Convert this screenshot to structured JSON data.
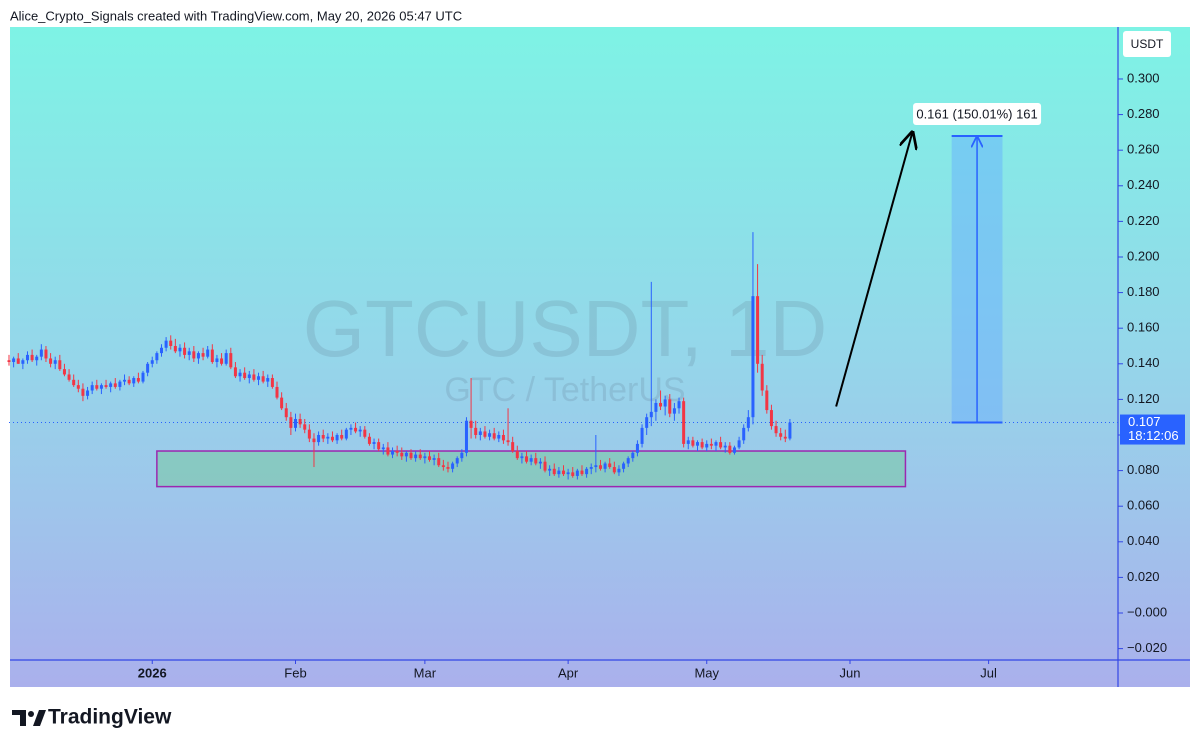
{
  "chart_data": {
    "type": "candlestick",
    "source": "Alice_Crypto_Signals created with TradingView.com, May 20, 2026 05:47 UTC",
    "title": "GTCUSDT, 1D",
    "subtitle": "GTC / TetherUS",
    "currency": "USDT",
    "brand": "TradingView",
    "up_color": "#2962ff",
    "down_color": "#f23645",
    "xlim": [
      0,
      240
    ],
    "ylim": [
      -0.0264,
      0.3292
    ],
    "xticks": [
      {
        "value": 31,
        "label": "2026"
      },
      {
        "value": 62,
        "label": "Feb"
      },
      {
        "value": 90,
        "label": "Mar"
      },
      {
        "value": 121,
        "label": "Apr"
      },
      {
        "value": 151,
        "label": "May"
      },
      {
        "value": 182,
        "label": "Jun"
      },
      {
        "value": 212,
        "label": "Jul"
      }
    ],
    "yticks": [
      {
        "value": -0.02,
        "label": "−0.020"
      },
      {
        "value": 0,
        "label": "−0.000"
      },
      {
        "value": 0.02,
        "label": "0.020"
      },
      {
        "value": 0.04,
        "label": "0.040"
      },
      {
        "value": 0.06,
        "label": "0.060"
      },
      {
        "value": 0.08,
        "label": "0.080"
      },
      {
        "value": 0.1,
        "label": "0.100"
      },
      {
        "value": 0.12,
        "label": "0.120"
      },
      {
        "value": 0.14,
        "label": "0.140"
      },
      {
        "value": 0.16,
        "label": "0.160"
      },
      {
        "value": 0.18,
        "label": "0.180"
      },
      {
        "value": 0.2,
        "label": "0.200"
      },
      {
        "value": 0.22,
        "label": "0.220"
      },
      {
        "value": 0.24,
        "label": "0.240"
      },
      {
        "value": 0.26,
        "label": "0.260"
      },
      {
        "value": 0.28,
        "label": "0.280"
      },
      {
        "value": 0.3,
        "label": "0.300"
      }
    ],
    "last_price": 0.107,
    "countdown": "18:12:06",
    "zone": {
      "x": [
        32,
        194
      ],
      "y": [
        0.071,
        0.091
      ]
    },
    "arrow": {
      "x": [
        179,
        195.5
      ],
      "y": [
        0.116,
        0.27
      ]
    },
    "measure": {
      "x": [
        204,
        215
      ],
      "y": [
        0.107,
        0.268
      ],
      "label": "0.161 (150.01%) 161"
    },
    "ohlc": [
      [
        0.142,
        0.145,
        0.139,
        0.141
      ],
      [
        0.141,
        0.144,
        0.138,
        0.143
      ],
      [
        0.143,
        0.146,
        0.14,
        0.14
      ],
      [
        0.14,
        0.143,
        0.137,
        0.142
      ],
      [
        0.142,
        0.147,
        0.14,
        0.145
      ],
      [
        0.145,
        0.148,
        0.141,
        0.142
      ],
      [
        0.142,
        0.145,
        0.139,
        0.144
      ],
      [
        0.144,
        0.151,
        0.142,
        0.148
      ],
      [
        0.148,
        0.15,
        0.141,
        0.143
      ],
      [
        0.143,
        0.146,
        0.138,
        0.14
      ],
      [
        0.14,
        0.144,
        0.137,
        0.142
      ],
      [
        0.142,
        0.145,
        0.136,
        0.137
      ],
      [
        0.137,
        0.14,
        0.133,
        0.134
      ],
      [
        0.134,
        0.137,
        0.13,
        0.131
      ],
      [
        0.131,
        0.134,
        0.127,
        0.128
      ],
      [
        0.128,
        0.131,
        0.124,
        0.126
      ],
      [
        0.126,
        0.129,
        0.119,
        0.122
      ],
      [
        0.122,
        0.127,
        0.12,
        0.125
      ],
      [
        0.125,
        0.13,
        0.123,
        0.128
      ],
      [
        0.128,
        0.131,
        0.125,
        0.126
      ],
      [
        0.126,
        0.129,
        0.123,
        0.128
      ],
      [
        0.128,
        0.131,
        0.126,
        0.127
      ],
      [
        0.127,
        0.13,
        0.124,
        0.129
      ],
      [
        0.129,
        0.132,
        0.126,
        0.127
      ],
      [
        0.127,
        0.131,
        0.125,
        0.13
      ],
      [
        0.13,
        0.134,
        0.128,
        0.131
      ],
      [
        0.131,
        0.133,
        0.128,
        0.129
      ],
      [
        0.129,
        0.133,
        0.127,
        0.132
      ],
      [
        0.132,
        0.135,
        0.129,
        0.13
      ],
      [
        0.13,
        0.136,
        0.129,
        0.135
      ],
      [
        0.135,
        0.141,
        0.133,
        0.14
      ],
      [
        0.14,
        0.144,
        0.138,
        0.142
      ],
      [
        0.142,
        0.147,
        0.14,
        0.146
      ],
      [
        0.146,
        0.151,
        0.144,
        0.149
      ],
      [
        0.149,
        0.155,
        0.147,
        0.153
      ],
      [
        0.153,
        0.156,
        0.148,
        0.15
      ],
      [
        0.15,
        0.154,
        0.146,
        0.147
      ],
      [
        0.147,
        0.151,
        0.144,
        0.149
      ],
      [
        0.149,
        0.152,
        0.143,
        0.145
      ],
      [
        0.145,
        0.149,
        0.142,
        0.147
      ],
      [
        0.147,
        0.15,
        0.141,
        0.143
      ],
      [
        0.143,
        0.147,
        0.14,
        0.146
      ],
      [
        0.146,
        0.149,
        0.142,
        0.144
      ],
      [
        0.144,
        0.15,
        0.143,
        0.148
      ],
      [
        0.148,
        0.151,
        0.14,
        0.141
      ],
      [
        0.141,
        0.145,
        0.138,
        0.143
      ],
      [
        0.143,
        0.146,
        0.139,
        0.14
      ],
      [
        0.14,
        0.148,
        0.139,
        0.146
      ],
      [
        0.146,
        0.149,
        0.137,
        0.138
      ],
      [
        0.138,
        0.141,
        0.132,
        0.133
      ],
      [
        0.133,
        0.137,
        0.13,
        0.135
      ],
      [
        0.135,
        0.138,
        0.131,
        0.132
      ],
      [
        0.132,
        0.136,
        0.129,
        0.134
      ],
      [
        0.134,
        0.137,
        0.13,
        0.131
      ],
      [
        0.131,
        0.135,
        0.128,
        0.133
      ],
      [
        0.133,
        0.136,
        0.129,
        0.13
      ],
      [
        0.13,
        0.134,
        0.127,
        0.132
      ],
      [
        0.132,
        0.134,
        0.126,
        0.127
      ],
      [
        0.127,
        0.13,
        0.12,
        0.121
      ],
      [
        0.121,
        0.124,
        0.114,
        0.115
      ],
      [
        0.115,
        0.118,
        0.108,
        0.11
      ],
      [
        0.11,
        0.113,
        0.1,
        0.104
      ],
      [
        0.104,
        0.112,
        0.102,
        0.109
      ],
      [
        0.109,
        0.112,
        0.104,
        0.106
      ],
      [
        0.106,
        0.109,
        0.101,
        0.103
      ],
      [
        0.103,
        0.106,
        0.096,
        0.098
      ],
      [
        0.098,
        0.101,
        0.082,
        0.096
      ],
      [
        0.096,
        0.102,
        0.094,
        0.1
      ],
      [
        0.1,
        0.103,
        0.096,
        0.098
      ],
      [
        0.098,
        0.101,
        0.095,
        0.099
      ],
      [
        0.099,
        0.102,
        0.096,
        0.097
      ],
      [
        0.097,
        0.101,
        0.095,
        0.1
      ],
      [
        0.1,
        0.103,
        0.097,
        0.098
      ],
      [
        0.098,
        0.104,
        0.097,
        0.103
      ],
      [
        0.103,
        0.106,
        0.1,
        0.104
      ],
      [
        0.104,
        0.107,
        0.101,
        0.102
      ],
      [
        0.102,
        0.105,
        0.099,
        0.103
      ],
      [
        0.103,
        0.105,
        0.098,
        0.099
      ],
      [
        0.099,
        0.101,
        0.094,
        0.095
      ],
      [
        0.095,
        0.098,
        0.092,
        0.096
      ],
      [
        0.096,
        0.098,
        0.091,
        0.092
      ],
      [
        0.092,
        0.095,
        0.089,
        0.093
      ],
      [
        0.093,
        0.096,
        0.088,
        0.089
      ],
      [
        0.089,
        0.093,
        0.087,
        0.091
      ],
      [
        0.091,
        0.094,
        0.088,
        0.09
      ],
      [
        0.09,
        0.093,
        0.086,
        0.088
      ],
      [
        0.088,
        0.091,
        0.085,
        0.09
      ],
      [
        0.09,
        0.092,
        0.086,
        0.087
      ],
      [
        0.087,
        0.091,
        0.085,
        0.089
      ],
      [
        0.089,
        0.092,
        0.086,
        0.087
      ],
      [
        0.087,
        0.09,
        0.084,
        0.088
      ],
      [
        0.088,
        0.091,
        0.085,
        0.086
      ],
      [
        0.086,
        0.089,
        0.083,
        0.087
      ],
      [
        0.087,
        0.09,
        0.082,
        0.083
      ],
      [
        0.083,
        0.086,
        0.08,
        0.082
      ],
      [
        0.082,
        0.085,
        0.079,
        0.081
      ],
      [
        0.081,
        0.085,
        0.079,
        0.084
      ],
      [
        0.084,
        0.088,
        0.082,
        0.087
      ],
      [
        0.087,
        0.092,
        0.085,
        0.09
      ],
      [
        0.09,
        0.11,
        0.088,
        0.108
      ],
      [
        0.108,
        0.132,
        0.098,
        0.104
      ],
      [
        0.104,
        0.108,
        0.098,
        0.1
      ],
      [
        0.1,
        0.104,
        0.097,
        0.102
      ],
      [
        0.102,
        0.105,
        0.098,
        0.099
      ],
      [
        0.099,
        0.103,
        0.097,
        0.101
      ],
      [
        0.101,
        0.104,
        0.097,
        0.098
      ],
      [
        0.098,
        0.102,
        0.096,
        0.1
      ],
      [
        0.1,
        0.103,
        0.095,
        0.097
      ],
      [
        0.097,
        0.115,
        0.094,
        0.096
      ],
      [
        0.096,
        0.099,
        0.09,
        0.091
      ],
      [
        0.091,
        0.094,
        0.086,
        0.087
      ],
      [
        0.087,
        0.09,
        0.084,
        0.088
      ],
      [
        0.088,
        0.091,
        0.084,
        0.085
      ],
      [
        0.085,
        0.089,
        0.083,
        0.087
      ],
      [
        0.087,
        0.09,
        0.083,
        0.084
      ],
      [
        0.084,
        0.087,
        0.081,
        0.085
      ],
      [
        0.085,
        0.088,
        0.079,
        0.08
      ],
      [
        0.08,
        0.083,
        0.077,
        0.081
      ],
      [
        0.081,
        0.084,
        0.077,
        0.078
      ],
      [
        0.078,
        0.082,
        0.076,
        0.08
      ],
      [
        0.08,
        0.083,
        0.077,
        0.078
      ],
      [
        0.078,
        0.081,
        0.075,
        0.079
      ],
      [
        0.079,
        0.082,
        0.076,
        0.077
      ],
      [
        0.077,
        0.081,
        0.075,
        0.08
      ],
      [
        0.08,
        0.083,
        0.077,
        0.078
      ],
      [
        0.078,
        0.082,
        0.076,
        0.081
      ],
      [
        0.081,
        0.084,
        0.078,
        0.082
      ],
      [
        0.082,
        0.1,
        0.079,
        0.083
      ],
      [
        0.083,
        0.086,
        0.08,
        0.081
      ],
      [
        0.081,
        0.085,
        0.079,
        0.084
      ],
      [
        0.084,
        0.087,
        0.081,
        0.082
      ],
      [
        0.082,
        0.085,
        0.078,
        0.079
      ],
      [
        0.079,
        0.083,
        0.077,
        0.081
      ],
      [
        0.081,
        0.085,
        0.079,
        0.084
      ],
      [
        0.084,
        0.088,
        0.082,
        0.087
      ],
      [
        0.087,
        0.091,
        0.085,
        0.09
      ],
      [
        0.09,
        0.097,
        0.088,
        0.095
      ],
      [
        0.095,
        0.106,
        0.093,
        0.104
      ],
      [
        0.104,
        0.112,
        0.1,
        0.11
      ],
      [
        0.11,
        0.186,
        0.105,
        0.113
      ],
      [
        0.113,
        0.12,
        0.108,
        0.118
      ],
      [
        0.118,
        0.125,
        0.114,
        0.116
      ],
      [
        0.116,
        0.122,
        0.111,
        0.12
      ],
      [
        0.12,
        0.123,
        0.11,
        0.112
      ],
      [
        0.112,
        0.118,
        0.108,
        0.115
      ],
      [
        0.115,
        0.121,
        0.112,
        0.119
      ],
      [
        0.119,
        0.121,
        0.093,
        0.095
      ],
      [
        0.095,
        0.099,
        0.092,
        0.097
      ],
      [
        0.097,
        0.099,
        0.093,
        0.094
      ],
      [
        0.094,
        0.097,
        0.091,
        0.096
      ],
      [
        0.096,
        0.098,
        0.092,
        0.093
      ],
      [
        0.093,
        0.097,
        0.091,
        0.095
      ],
      [
        0.095,
        0.098,
        0.092,
        0.094
      ],
      [
        0.094,
        0.097,
        0.091,
        0.096
      ],
      [
        0.096,
        0.099,
        0.092,
        0.093
      ],
      [
        0.093,
        0.096,
        0.09,
        0.094
      ],
      [
        0.094,
        0.096,
        0.089,
        0.09
      ],
      [
        0.09,
        0.094,
        0.089,
        0.093
      ],
      [
        0.093,
        0.099,
        0.092,
        0.097
      ],
      [
        0.097,
        0.106,
        0.095,
        0.104
      ],
      [
        0.104,
        0.114,
        0.102,
        0.11
      ],
      [
        0.11,
        0.214,
        0.106,
        0.178
      ],
      [
        0.178,
        0.196,
        0.135,
        0.14
      ],
      [
        0.14,
        0.145,
        0.122,
        0.125
      ],
      [
        0.125,
        0.128,
        0.112,
        0.114
      ],
      [
        0.114,
        0.117,
        0.103,
        0.105
      ],
      [
        0.105,
        0.108,
        0.099,
        0.101
      ],
      [
        0.101,
        0.104,
        0.097,
        0.099
      ],
      [
        0.099,
        0.103,
        0.096,
        0.098
      ],
      [
        0.098,
        0.109,
        0.097,
        0.107
      ]
    ]
  }
}
